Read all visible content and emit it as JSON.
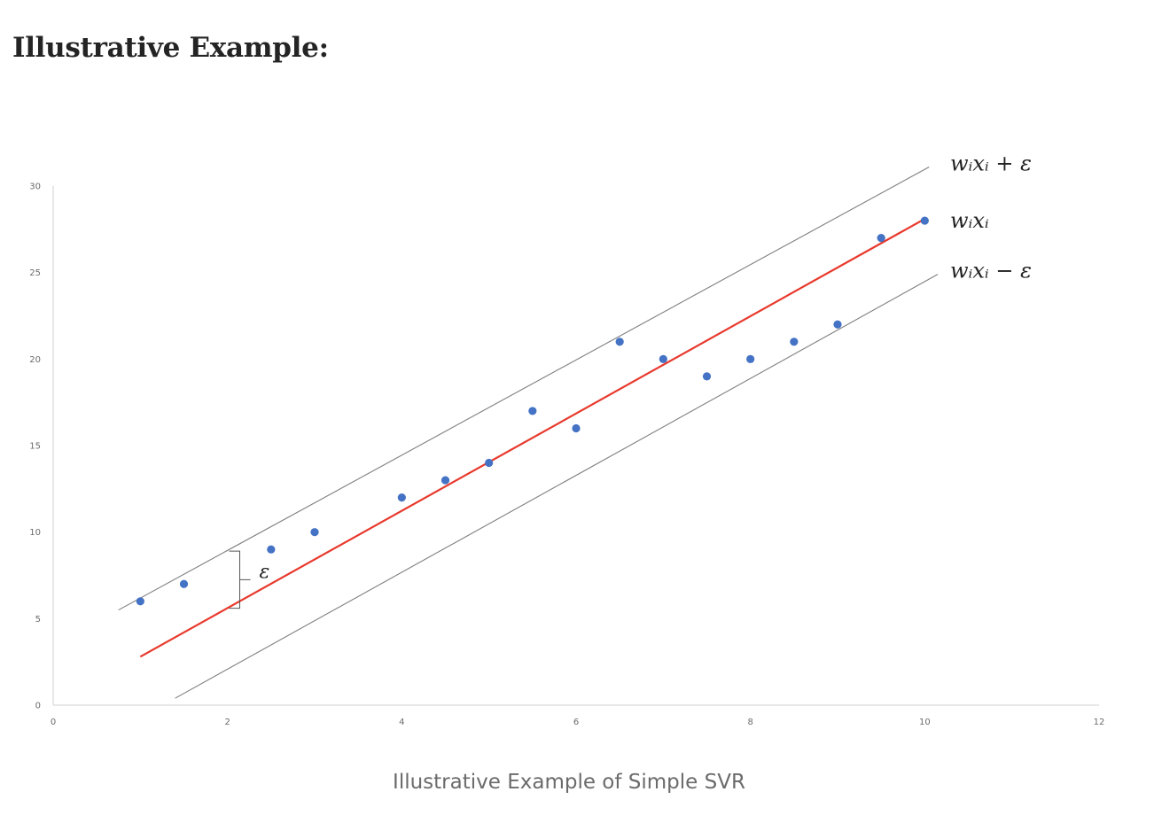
{
  "heading": "Illustrative Example:",
  "caption": "Illustrative Example of Simple SVR",
  "chart_data": {
    "type": "scatter",
    "title": "",
    "xlabel": "",
    "ylabel": "",
    "xlim": [
      0,
      12
    ],
    "ylim": [
      0,
      30
    ],
    "x_ticks": [
      0,
      2,
      4,
      6,
      8,
      10,
      12
    ],
    "y_ticks": [
      0,
      5,
      10,
      15,
      20,
      25,
      30
    ],
    "grid": false,
    "legend": "none",
    "points": {
      "color": "#4472c4",
      "x": [
        1,
        1.5,
        2.5,
        3,
        4,
        4.5,
        5,
        5.5,
        6,
        6.5,
        7,
        7.5,
        8,
        8.5,
        9,
        9.5,
        10
      ],
      "y": [
        6,
        7,
        9,
        10,
        12,
        13,
        14,
        17,
        16,
        21,
        20,
        19,
        20,
        21,
        22,
        27,
        28
      ]
    },
    "lines": [
      {
        "label": "wᵢxᵢ + ε",
        "color": "#7f7f7f",
        "x": [
          0.75,
          10.05
        ],
        "y": [
          5.5,
          31.1
        ]
      },
      {
        "label": "wᵢxᵢ",
        "color": "#e8392d",
        "x": [
          1,
          10
        ],
        "y": [
          2.8,
          28.1
        ]
      },
      {
        "label": "wᵢxᵢ − ε",
        "color": "#7f7f7f",
        "x": [
          1.4,
          10.15
        ],
        "y": [
          0.4,
          24.9
        ]
      }
    ],
    "epsilon_annotation": {
      "label": "ε",
      "x": 2.1,
      "y_from": 5.6,
      "y_to": 8.9
    }
  }
}
